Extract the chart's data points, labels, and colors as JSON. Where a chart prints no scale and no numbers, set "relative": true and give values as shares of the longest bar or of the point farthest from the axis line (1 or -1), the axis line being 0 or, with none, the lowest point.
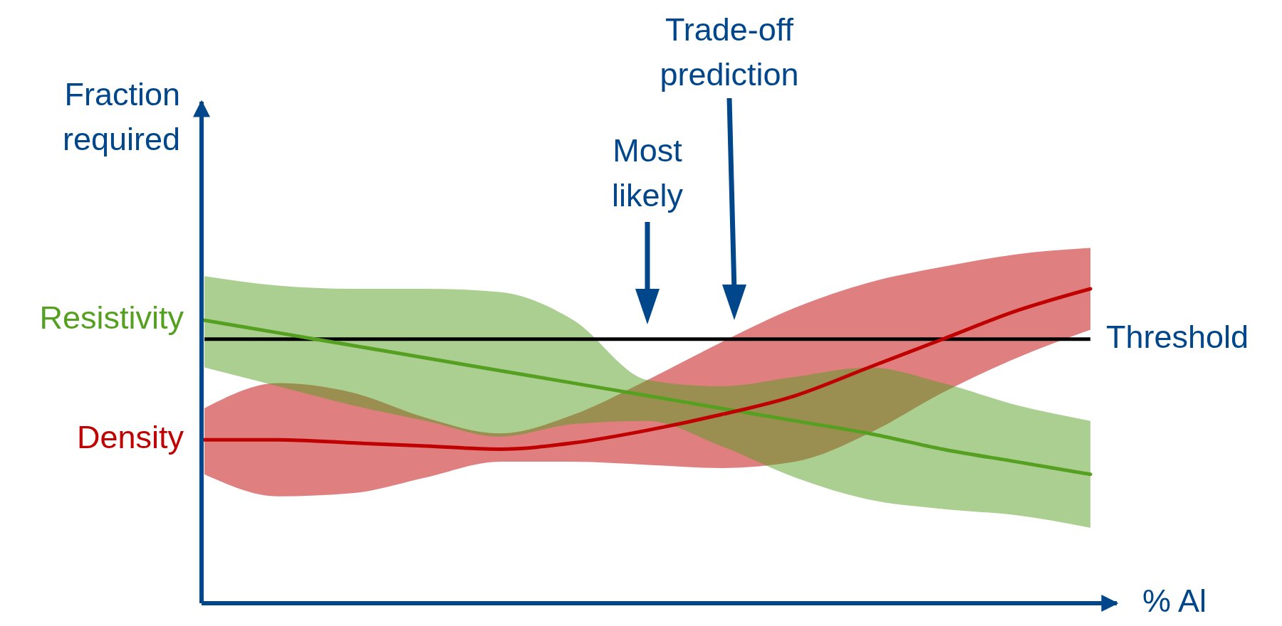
{
  "chart_data": {
    "type": "line",
    "relative": true,
    "xlabel": "% Al",
    "ylabel": "Fraction required",
    "categories": [
      null,
      null,
      null,
      null,
      null,
      null,
      null,
      null,
      null,
      null,
      null,
      null,
      null
    ],
    "series": [
      {
        "name": "Resistivity",
        "color": "#56a021",
        "values": [
          0.9,
          0.86,
          0.82,
          0.78,
          0.74,
          0.7,
          0.66,
          0.62,
          0.58,
          0.54,
          0.49,
          0.45,
          0.41
        ],
        "lower": [
          0.75,
          0.69,
          0.63,
          0.58,
          0.53,
          0.57,
          0.58,
          0.5,
          0.4,
          0.33,
          0.3,
          0.28,
          0.24
        ],
        "upper": [
          1.04,
          1.01,
          1.0,
          1.0,
          0.99,
          0.9,
          0.71,
          0.69,
          0.72,
          0.75,
          0.7,
          0.63,
          0.58
        ]
      },
      {
        "name": "Density",
        "color": "#c00000",
        "values": [
          0.52,
          0.52,
          0.51,
          0.5,
          0.49,
          0.51,
          0.55,
          0.6,
          0.66,
          0.75,
          0.84,
          0.93,
          1
        ],
        "lower": [
          0.41,
          0.34,
          0.35,
          0.4,
          0.45,
          0.45,
          0.44,
          0.43,
          0.45,
          0.54,
          0.67,
          0.78,
          0.87
        ],
        "upper": [
          0.62,
          0.7,
          0.67,
          0.59,
          0.54,
          0.6,
          0.71,
          0.83,
          0.94,
          1.02,
          1.07,
          1.11,
          1.13
        ]
      }
    ],
    "ref_lines": [
      {
        "axis": "y",
        "value": 0.84,
        "label": "Threshold",
        "color": "#000000"
      }
    ],
    "annotations": [
      "Most likely",
      "Trade-off prediction"
    ]
  }
}
